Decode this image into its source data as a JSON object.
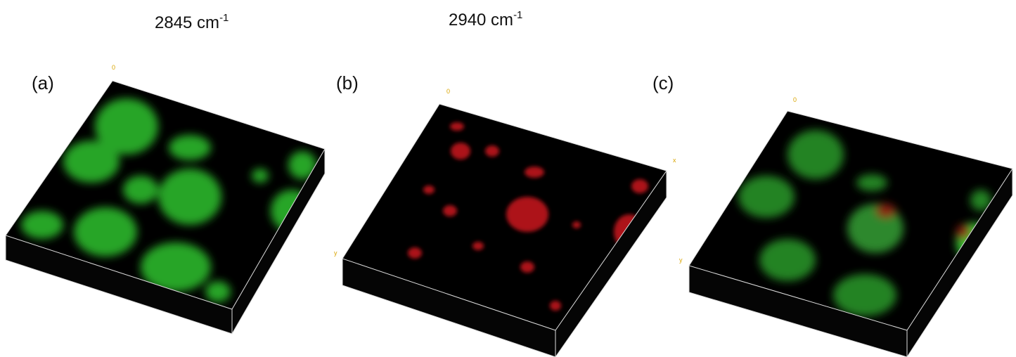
{
  "headers": [
    {
      "text": "2845 cm",
      "sup": "-1"
    },
    {
      "text": "2940 cm",
      "sup": "-1"
    }
  ],
  "panels": [
    {
      "label": "(a)",
      "axis_labels": [
        "0"
      ]
    },
    {
      "label": "(b)",
      "axis_labels": [
        "0",
        "x",
        "y"
      ]
    },
    {
      "label": "(c)",
      "axis_labels": [
        "0",
        "y"
      ]
    }
  ]
}
